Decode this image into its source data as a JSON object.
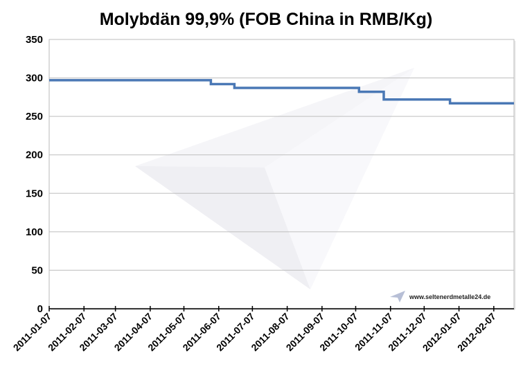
{
  "chart_data": {
    "type": "line",
    "title": "Molybdän 99,9% (FOB China in RMB/Kg)",
    "xlabel": "",
    "ylabel": "",
    "ylim": [
      0,
      350
    ],
    "yticks": [
      0,
      50,
      100,
      150,
      200,
      250,
      300,
      350
    ],
    "xlim": [
      "2011-01-07",
      "2012-02-25"
    ],
    "xticks": [
      "2011-01-07",
      "2011-02-07",
      "2011-03-07",
      "2011-04-07",
      "2011-05-07",
      "2011-06-07",
      "2011-07-07",
      "2011-08-07",
      "2011-09-07",
      "2011-10-07",
      "2011-11-07",
      "2011-12-07",
      "2012-01-07",
      "2012-02-07"
    ],
    "grid": true,
    "legend": "none",
    "series": [
      {
        "color": "#4a78b5",
        "points": [
          {
            "x": "2011-01-07",
            "y": 297
          },
          {
            "x": "2011-05-31",
            "y": 297
          },
          {
            "x": "2011-05-31",
            "y": 292
          },
          {
            "x": "2011-06-21",
            "y": 292
          },
          {
            "x": "2011-06-21",
            "y": 287
          },
          {
            "x": "2011-10-10",
            "y": 287
          },
          {
            "x": "2011-10-10",
            "y": 282
          },
          {
            "x": "2011-11-01",
            "y": 282
          },
          {
            "x": "2011-11-01",
            "y": 272
          },
          {
            "x": "2011-12-30",
            "y": 272
          },
          {
            "x": "2011-12-30",
            "y": 267
          },
          {
            "x": "2012-02-25",
            "y": 267
          }
        ]
      }
    ]
  },
  "watermark": {
    "text": "www.seltenerdmetalle24.de"
  }
}
